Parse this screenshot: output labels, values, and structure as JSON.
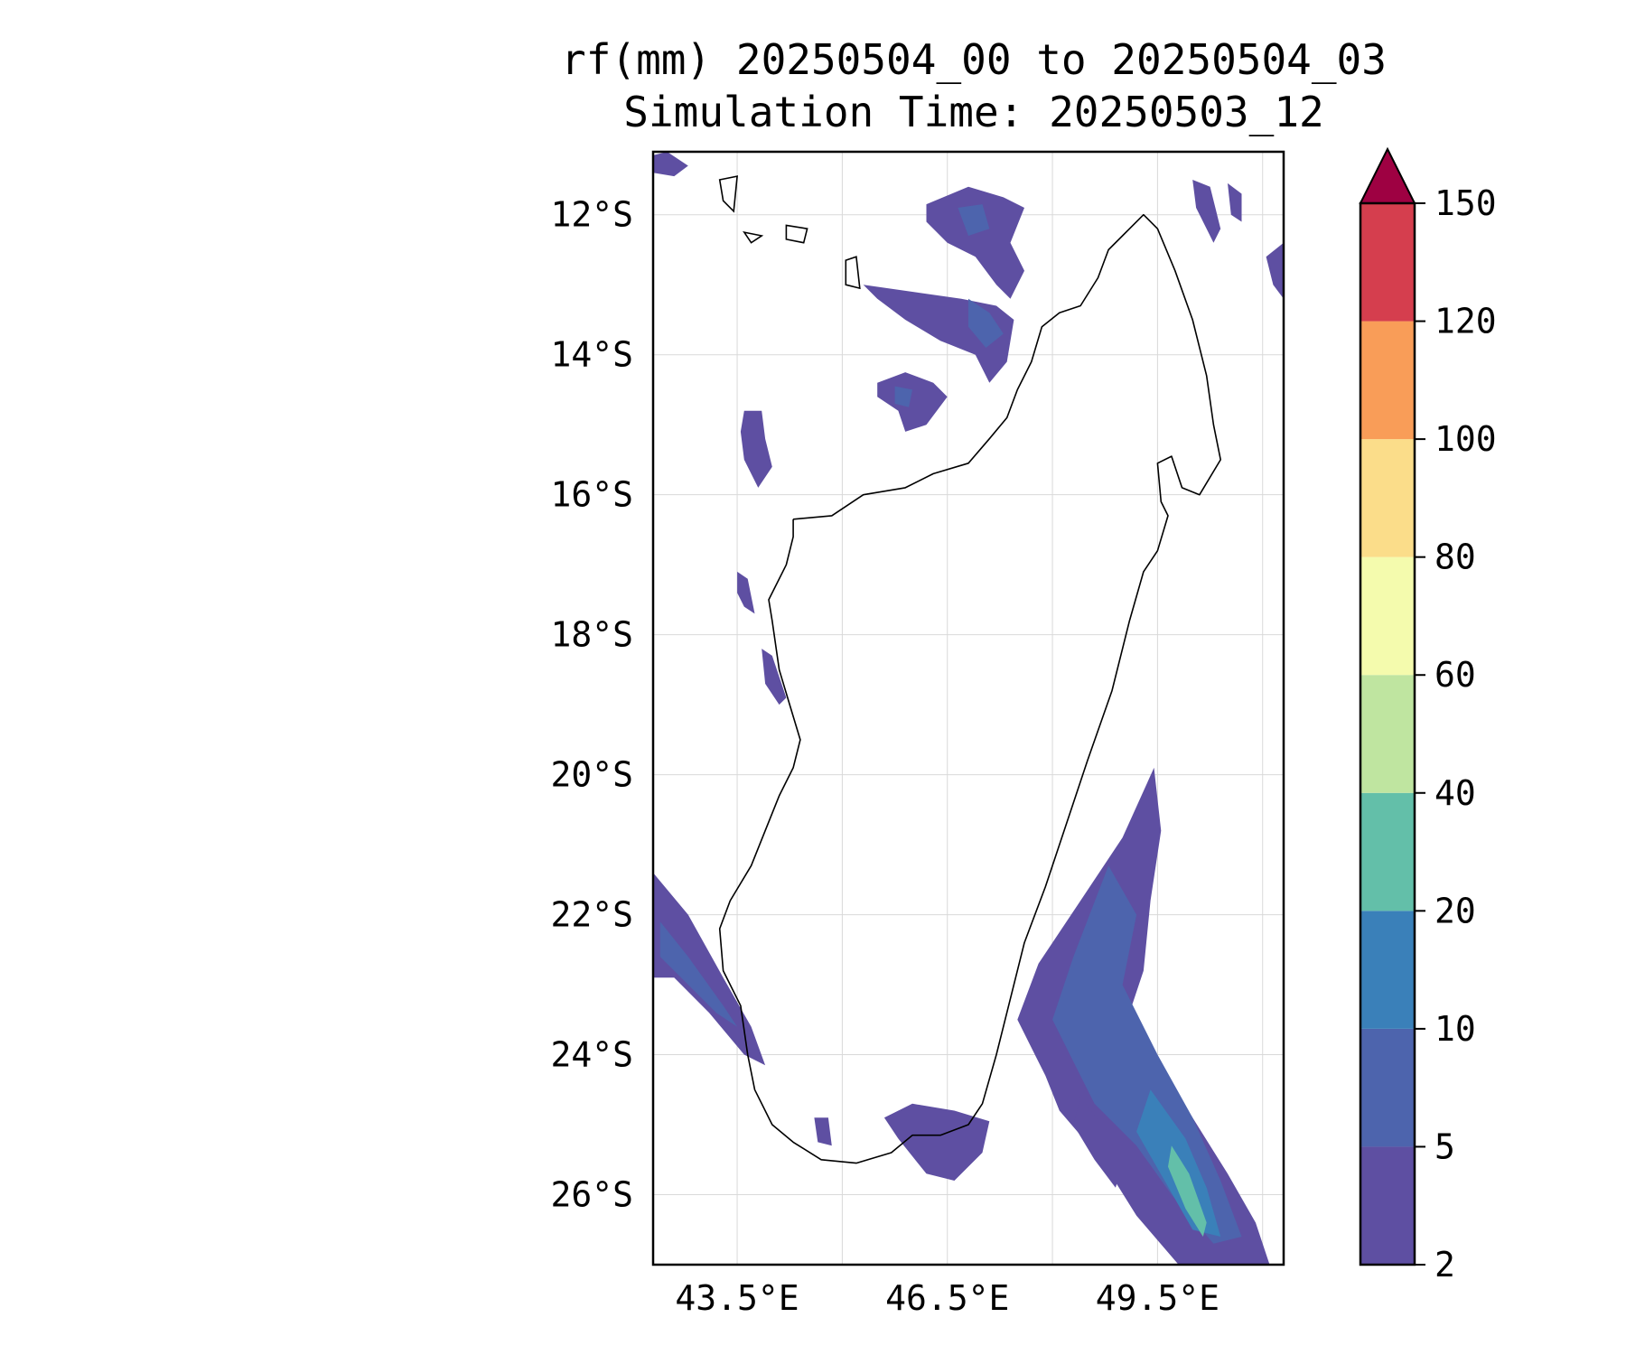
{
  "chart_data": {
    "type": "map",
    "title": "rf(mm) 20250504_00 to 20250504_03",
    "subtitle": "Simulation Time: 20250503_12",
    "variable_unit": "mm",
    "grid": true,
    "lon_range": [
      42.3,
      51.3
    ],
    "lat_range": [
      -27.0,
      -11.1
    ],
    "lon_ticks": [
      {
        "value": 43.5,
        "label": "43.5°E"
      },
      {
        "value": 46.5,
        "label": "46.5°E"
      },
      {
        "value": 49.5,
        "label": "49.5°E"
      }
    ],
    "lat_ticks": [
      {
        "value": -12,
        "label": "12°S"
      },
      {
        "value": -14,
        "label": "14°S"
      },
      {
        "value": -16,
        "label": "16°S"
      },
      {
        "value": -18,
        "label": "18°S"
      },
      {
        "value": -20,
        "label": "20°S"
      },
      {
        "value": -22,
        "label": "22°S"
      },
      {
        "value": -24,
        "label": "24°S"
      },
      {
        "value": -26,
        "label": "26°S"
      }
    ],
    "colorbar": {
      "levels": [
        2,
        5,
        10,
        20,
        40,
        60,
        80,
        100,
        120,
        150
      ],
      "tick_labels": [
        "2",
        "5",
        "10",
        "20",
        "40",
        "60",
        "80",
        "100",
        "120",
        "150"
      ],
      "colors": [
        "#5e4fa2",
        "#4d64ad",
        "#3a80b9",
        "#63bfa9",
        "#bfe5a0",
        "#f4fbad",
        "#fbdd8a",
        "#f99d58",
        "#d53e4e"
      ],
      "extend_color": "#9e0142",
      "extend": "max"
    },
    "coastline": [
      [
        44.3,
        -16.35
      ],
      [
        44.85,
        -16.3
      ],
      [
        45.3,
        -16.0
      ],
      [
        45.9,
        -15.9
      ],
      [
        46.3,
        -15.7
      ],
      [
        46.8,
        -15.55
      ],
      [
        47.1,
        -15.2
      ],
      [
        47.35,
        -14.9
      ],
      [
        47.5,
        -14.5
      ],
      [
        47.7,
        -14.1
      ],
      [
        47.85,
        -13.6
      ],
      [
        48.1,
        -13.4
      ],
      [
        48.4,
        -13.3
      ],
      [
        48.65,
        -12.9
      ],
      [
        48.8,
        -12.5
      ],
      [
        49.0,
        -12.3
      ],
      [
        49.3,
        -12.0
      ],
      [
        49.5,
        -12.2
      ],
      [
        49.75,
        -12.8
      ],
      [
        50.0,
        -13.5
      ],
      [
        50.2,
        -14.3
      ],
      [
        50.3,
        -15.0
      ],
      [
        50.4,
        -15.5
      ],
      [
        50.1,
        -16.0
      ],
      [
        49.85,
        -15.9
      ],
      [
        49.7,
        -15.45
      ],
      [
        49.5,
        -15.55
      ],
      [
        49.55,
        -16.1
      ],
      [
        49.65,
        -16.3
      ],
      [
        49.5,
        -16.8
      ],
      [
        49.3,
        -17.1
      ],
      [
        49.1,
        -17.8
      ],
      [
        48.85,
        -18.8
      ],
      [
        48.5,
        -19.8
      ],
      [
        48.2,
        -20.7
      ],
      [
        47.9,
        -21.6
      ],
      [
        47.6,
        -22.4
      ],
      [
        47.4,
        -23.2
      ],
      [
        47.2,
        -24.0
      ],
      [
        47.0,
        -24.7
      ],
      [
        46.8,
        -25.0
      ],
      [
        46.4,
        -25.15
      ],
      [
        46.0,
        -25.15
      ],
      [
        45.7,
        -25.4
      ],
      [
        45.2,
        -25.55
      ],
      [
        44.7,
        -25.5
      ],
      [
        44.3,
        -25.25
      ],
      [
        44.0,
        -25.0
      ],
      [
        43.75,
        -24.5
      ],
      [
        43.65,
        -24.0
      ],
      [
        43.55,
        -23.3
      ],
      [
        43.3,
        -22.8
      ],
      [
        43.25,
        -22.2
      ],
      [
        43.4,
        -21.8
      ],
      [
        43.7,
        -21.3
      ],
      [
        43.9,
        -20.8
      ],
      [
        44.1,
        -20.3
      ],
      [
        44.3,
        -19.9
      ],
      [
        44.4,
        -19.5
      ],
      [
        44.25,
        -19.0
      ],
      [
        44.1,
        -18.5
      ],
      [
        44.0,
        -17.8
      ],
      [
        43.95,
        -17.5
      ],
      [
        44.2,
        -17.0
      ],
      [
        44.3,
        -16.6
      ],
      [
        44.3,
        -16.35
      ]
    ],
    "islands": [
      [
        [
          43.25,
          -11.5
        ],
        [
          43.5,
          -11.45
        ],
        [
          43.45,
          -11.95
        ],
        [
          43.3,
          -11.8
        ]
      ],
      [
        [
          44.2,
          -12.15
        ],
        [
          44.5,
          -12.2
        ],
        [
          44.45,
          -12.4
        ],
        [
          44.2,
          -12.35
        ]
      ],
      [
        [
          45.05,
          -12.65
        ],
        [
          45.2,
          -12.6
        ],
        [
          45.25,
          -13.05
        ],
        [
          45.05,
          -13.0
        ]
      ],
      [
        [
          43.6,
          -12.25
        ],
        [
          43.85,
          -12.3
        ],
        [
          43.7,
          -12.4
        ]
      ]
    ],
    "rain_regions": [
      {
        "class": "2-5",
        "polygon": [
          [
            42.3,
            -21.4
          ],
          [
            42.8,
            -22.0
          ],
          [
            43.3,
            -22.9
          ],
          [
            43.7,
            -23.6
          ],
          [
            43.9,
            -24.15
          ],
          [
            43.6,
            -24.0
          ],
          [
            43.1,
            -23.4
          ],
          [
            42.6,
            -22.9
          ],
          [
            42.3,
            -22.9
          ]
        ]
      },
      {
        "class": "5-10",
        "polygon": [
          [
            42.4,
            -22.1
          ],
          [
            42.8,
            -22.6
          ],
          [
            43.3,
            -23.3
          ],
          [
            43.5,
            -23.6
          ],
          [
            43.2,
            -23.4
          ],
          [
            42.7,
            -22.9
          ],
          [
            42.4,
            -22.6
          ]
        ]
      },
      {
        "class": "2-5",
        "polygon": [
          [
            49.45,
            -19.9
          ],
          [
            49.55,
            -20.8
          ],
          [
            49.4,
            -21.8
          ],
          [
            49.3,
            -22.8
          ],
          [
            49.1,
            -23.4
          ],
          [
            49.55,
            -24.2
          ],
          [
            50.0,
            -24.9
          ],
          [
            50.5,
            -25.7
          ],
          [
            50.9,
            -26.4
          ],
          [
            51.1,
            -27.0
          ],
          [
            49.8,
            -27.0
          ],
          [
            49.2,
            -26.3
          ],
          [
            48.7,
            -25.5
          ],
          [
            48.1,
            -24.8
          ],
          [
            47.9,
            -24.3
          ],
          [
            47.5,
            -23.5
          ],
          [
            47.8,
            -22.7
          ],
          [
            48.4,
            -21.8
          ],
          [
            49.0,
            -20.9
          ]
        ]
      },
      {
        "class": "5-10",
        "polygon": [
          [
            48.8,
            -21.3
          ],
          [
            49.2,
            -22.0
          ],
          [
            49.0,
            -23.0
          ],
          [
            49.5,
            -24.0
          ],
          [
            50.0,
            -24.9
          ],
          [
            50.4,
            -25.8
          ],
          [
            50.7,
            -26.6
          ],
          [
            50.3,
            -26.7
          ],
          [
            49.7,
            -26.0
          ],
          [
            49.2,
            -25.3
          ],
          [
            48.6,
            -24.7
          ],
          [
            48.3,
            -24.1
          ],
          [
            48.0,
            -23.5
          ],
          [
            48.3,
            -22.6
          ]
        ]
      },
      {
        "class": "10-20",
        "polygon": [
          [
            49.4,
            -24.5
          ],
          [
            49.9,
            -25.2
          ],
          [
            50.2,
            -25.9
          ],
          [
            50.4,
            -26.6
          ],
          [
            50.0,
            -26.5
          ],
          [
            49.6,
            -25.8
          ],
          [
            49.2,
            -25.1
          ]
        ]
      },
      {
        "class": "20-40",
        "polygon": [
          [
            49.7,
            -25.3
          ],
          [
            49.95,
            -25.7
          ],
          [
            50.2,
            -26.4
          ],
          [
            50.15,
            -26.6
          ],
          [
            49.9,
            -26.2
          ],
          [
            49.65,
            -25.6
          ]
        ]
      },
      {
        "class": "2-5",
        "polygon": [
          [
            46.0,
            -24.7
          ],
          [
            46.6,
            -24.8
          ],
          [
            47.1,
            -24.95
          ],
          [
            47.0,
            -25.4
          ],
          [
            46.6,
            -25.8
          ],
          [
            46.2,
            -25.7
          ],
          [
            45.8,
            -25.2
          ],
          [
            45.6,
            -24.9
          ]
        ]
      },
      {
        "class": "2-5",
        "polygon": [
          [
            46.2,
            -11.85
          ],
          [
            46.8,
            -11.6
          ],
          [
            47.3,
            -11.75
          ],
          [
            47.6,
            -11.9
          ],
          [
            47.4,
            -12.4
          ],
          [
            47.6,
            -12.8
          ],
          [
            47.4,
            -13.2
          ],
          [
            47.2,
            -13.0
          ],
          [
            46.9,
            -12.6
          ],
          [
            46.5,
            -12.4
          ],
          [
            46.2,
            -12.1
          ]
        ]
      },
      {
        "class": "5-10",
        "polygon": [
          [
            46.65,
            -11.9
          ],
          [
            47.0,
            -11.85
          ],
          [
            47.1,
            -12.2
          ],
          [
            46.8,
            -12.3
          ]
        ]
      },
      {
        "class": "2-5",
        "polygon": [
          [
            45.3,
            -13.0
          ],
          [
            46.0,
            -13.1
          ],
          [
            46.7,
            -13.2
          ],
          [
            47.2,
            -13.3
          ],
          [
            47.45,
            -13.5
          ],
          [
            47.35,
            -14.1
          ],
          [
            47.1,
            -14.4
          ],
          [
            46.9,
            -14.0
          ],
          [
            46.4,
            -13.8
          ],
          [
            45.9,
            -13.5
          ],
          [
            45.5,
            -13.2
          ]
        ]
      },
      {
        "class": "5-10",
        "polygon": [
          [
            46.8,
            -13.2
          ],
          [
            47.1,
            -13.4
          ],
          [
            47.3,
            -13.7
          ],
          [
            47.05,
            -13.9
          ],
          [
            46.8,
            -13.6
          ]
        ]
      },
      {
        "class": "2-5",
        "polygon": [
          [
            45.5,
            -14.4
          ],
          [
            45.9,
            -14.25
          ],
          [
            46.3,
            -14.4
          ],
          [
            46.5,
            -14.6
          ],
          [
            46.2,
            -15.0
          ],
          [
            45.9,
            -15.1
          ],
          [
            45.8,
            -14.8
          ],
          [
            45.5,
            -14.6
          ]
        ]
      },
      {
        "class": "5-10",
        "polygon": [
          [
            45.75,
            -14.45
          ],
          [
            46.0,
            -14.5
          ],
          [
            45.95,
            -14.75
          ],
          [
            45.75,
            -14.7
          ]
        ]
      },
      {
        "class": "2-5",
        "polygon": [
          [
            43.6,
            -14.8
          ],
          [
            43.85,
            -14.8
          ],
          [
            43.9,
            -15.2
          ],
          [
            44.0,
            -15.6
          ],
          [
            43.8,
            -15.9
          ],
          [
            43.6,
            -15.5
          ],
          [
            43.55,
            -15.1
          ]
        ]
      },
      {
        "class": "2-5",
        "polygon": [
          [
            43.5,
            -17.1
          ],
          [
            43.65,
            -17.2
          ],
          [
            43.75,
            -17.7
          ],
          [
            43.6,
            -17.6
          ],
          [
            43.5,
            -17.4
          ]
        ]
      },
      {
        "class": "2-5",
        "polygon": [
          [
            42.3,
            -11.15
          ],
          [
            42.5,
            -11.1
          ],
          [
            42.8,
            -11.3
          ],
          [
            42.6,
            -11.45
          ],
          [
            42.3,
            -11.4
          ]
        ]
      },
      {
        "class": "2-5",
        "polygon": [
          [
            48.4,
            -24.6
          ],
          [
            48.7,
            -25.0
          ],
          [
            49.0,
            -25.6
          ],
          [
            48.9,
            -25.9
          ],
          [
            48.6,
            -25.5
          ],
          [
            48.3,
            -25.0
          ]
        ]
      },
      {
        "class": "2-5",
        "polygon": [
          [
            44.6,
            -24.9
          ],
          [
            44.8,
            -24.9
          ],
          [
            44.85,
            -25.3
          ],
          [
            44.65,
            -25.25
          ]
        ]
      },
      {
        "class": "2-5",
        "polygon": [
          [
            43.85,
            -18.2
          ],
          [
            44.0,
            -18.3
          ],
          [
            44.2,
            -18.9
          ],
          [
            44.1,
            -19.0
          ],
          [
            43.9,
            -18.7
          ]
        ]
      },
      {
        "class": "2-5",
        "polygon": [
          [
            51.05,
            -12.6
          ],
          [
            51.3,
            -12.4
          ],
          [
            51.3,
            -13.2
          ],
          [
            51.15,
            -13.0
          ]
        ]
      },
      {
        "class": "2-5",
        "polygon": [
          [
            50.0,
            -11.5
          ],
          [
            50.25,
            -11.6
          ],
          [
            50.4,
            -12.2
          ],
          [
            50.3,
            -12.4
          ],
          [
            50.05,
            -11.9
          ]
        ]
      },
      {
        "class": "2-5",
        "polygon": [
          [
            50.5,
            -11.55
          ],
          [
            50.7,
            -11.7
          ],
          [
            50.7,
            -12.1
          ],
          [
            50.55,
            -12.0
          ]
        ]
      }
    ]
  }
}
